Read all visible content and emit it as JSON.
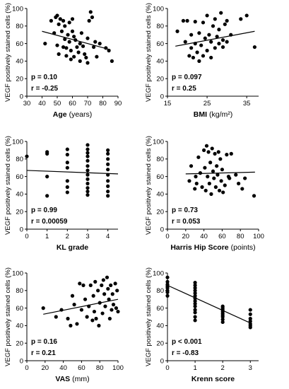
{
  "chart_data": [
    {
      "type": "scatter",
      "ylabel": "VEGF positively stained cells (%)",
      "xlabel": "Age",
      "xunit": "(years)",
      "xlim": [
        30,
        90
      ],
      "xticks": [
        30,
        40,
        50,
        60,
        70,
        80,
        90
      ],
      "ylim": [
        0,
        100
      ],
      "yticks": [
        0,
        20,
        40,
        60,
        80,
        100
      ],
      "stats": {
        "p": "p = 0.10",
        "r": "r = -0.25"
      },
      "trend": [
        [
          40,
          74
        ],
        [
          85,
          53
        ]
      ],
      "points": [
        [
          42,
          60
        ],
        [
          46,
          86
        ],
        [
          48,
          72
        ],
        [
          49,
          90
        ],
        [
          50,
          92
        ],
        [
          50,
          58
        ],
        [
          51,
          82
        ],
        [
          51,
          48
        ],
        [
          52,
          88
        ],
        [
          53,
          74
        ],
        [
          54,
          86
        ],
        [
          54,
          56
        ],
        [
          55,
          80
        ],
        [
          55,
          65
        ],
        [
          56,
          55
        ],
        [
          56,
          46
        ],
        [
          57,
          70
        ],
        [
          58,
          84
        ],
        [
          58,
          62
        ],
        [
          59,
          42
        ],
        [
          59,
          52
        ],
        [
          60,
          88
        ],
        [
          60,
          74
        ],
        [
          61,
          68
        ],
        [
          61,
          45
        ],
        [
          62,
          64
        ],
        [
          63,
          56
        ],
        [
          64,
          50
        ],
        [
          65,
          60
        ],
        [
          65,
          40
        ],
        [
          66,
          72
        ],
        [
          67,
          57
        ],
        [
          68,
          48
        ],
        [
          69,
          44
        ],
        [
          70,
          66
        ],
        [
          70,
          38
        ],
        [
          71,
          86
        ],
        [
          72,
          96
        ],
        [
          73,
          90
        ],
        [
          74,
          56
        ],
        [
          75,
          62
        ],
        [
          76,
          45
        ],
        [
          78,
          60
        ],
        [
          82,
          55
        ],
        [
          84,
          52
        ],
        [
          86,
          40
        ]
      ]
    },
    {
      "type": "scatter",
      "ylabel": "VEGF positively stained cells (%)",
      "xlabel": "BMI",
      "xunit": "(kg/m²)",
      "xlim": [
        15,
        38
      ],
      "xticks": [
        15,
        25,
        35
      ],
      "ylim": [
        0,
        100
      ],
      "yticks": [
        0,
        20,
        40,
        60,
        80,
        100
      ],
      "stats": {
        "p": "p = 0.097",
        "r": "r = 0.25"
      },
      "trend": [
        [
          17,
          57
        ],
        [
          37,
          74
        ]
      ],
      "points": [
        [
          17.5,
          74
        ],
        [
          19,
          86
        ],
        [
          19.5,
          62
        ],
        [
          20,
          86
        ],
        [
          20.5,
          46
        ],
        [
          21,
          70
        ],
        [
          21,
          55
        ],
        [
          21.5,
          44
        ],
        [
          22,
          85
        ],
        [
          22,
          60
        ],
        [
          22.5,
          50
        ],
        [
          23,
          72
        ],
        [
          23,
          40
        ],
        [
          23.5,
          58
        ],
        [
          24,
          84
        ],
        [
          24,
          46
        ],
        [
          24.5,
          66
        ],
        [
          25,
          52
        ],
        [
          25,
          92
        ],
        [
          25.5,
          70
        ],
        [
          26,
          44
        ],
        [
          26,
          62
        ],
        [
          26.5,
          80
        ],
        [
          27,
          55
        ],
        [
          27,
          88
        ],
        [
          27.5,
          68
        ],
        [
          28,
          60
        ],
        [
          28,
          76
        ],
        [
          28.5,
          95
        ],
        [
          29,
          56
        ],
        [
          29,
          64
        ],
        [
          29.5,
          82
        ],
        [
          30,
          62
        ],
        [
          30,
          86
        ],
        [
          31,
          70
        ],
        [
          33.5,
          88
        ],
        [
          35,
          92
        ],
        [
          37,
          56
        ]
      ]
    },
    {
      "type": "scatter",
      "ylabel": "VEGF positively stained cells (%)",
      "xlabel": "KL grade",
      "xunit": "",
      "xlim": [
        0,
        4.5
      ],
      "xticks": [
        0,
        1,
        2,
        3,
        4
      ],
      "ylim": [
        0,
        100
      ],
      "yticks": [
        0,
        20,
        40,
        60,
        80,
        100
      ],
      "stats": {
        "p": "p = 0.99",
        "r": "r = 0.00059"
      },
      "trend": [
        [
          0,
          67
        ],
        [
          4.5,
          63
        ]
      ],
      "points": [
        [
          0,
          83
        ],
        [
          1,
          88
        ],
        [
          1,
          86
        ],
        [
          1,
          60
        ],
        [
          1,
          38
        ],
        [
          2,
          91
        ],
        [
          2,
          85
        ],
        [
          2,
          76
        ],
        [
          2,
          70
        ],
        [
          2,
          55
        ],
        [
          2,
          48
        ],
        [
          2,
          42
        ],
        [
          3,
          96
        ],
        [
          3,
          91
        ],
        [
          3,
          87
        ],
        [
          3,
          83
        ],
        [
          3,
          78
        ],
        [
          3,
          72
        ],
        [
          3,
          67
        ],
        [
          3,
          62
        ],
        [
          3,
          57
        ],
        [
          3,
          52
        ],
        [
          3,
          47
        ],
        [
          3,
          43
        ],
        [
          3,
          39
        ],
        [
          4,
          90
        ],
        [
          4,
          86
        ],
        [
          4,
          80
        ],
        [
          4,
          74
        ],
        [
          4,
          68
        ],
        [
          4,
          62
        ],
        [
          4,
          55
        ],
        [
          4,
          49
        ],
        [
          4,
          43
        ],
        [
          4,
          38
        ]
      ]
    },
    {
      "type": "scatter",
      "ylabel": "VEGF positively stained cells (%)",
      "xlabel": "Harris Hip Score",
      "xunit": "(points)",
      "xlim": [
        0,
        100
      ],
      "xticks": [
        0,
        20,
        40,
        60,
        80,
        100
      ],
      "ylim": [
        0,
        100
      ],
      "yticks": [
        0,
        20,
        40,
        60,
        80,
        100
      ],
      "stats": {
        "p": "p = 0.73",
        "r": "r = 0.053"
      },
      "trend": [
        [
          20,
          63
        ],
        [
          96,
          65
        ]
      ],
      "points": [
        [
          24,
          55
        ],
        [
          26,
          72
        ],
        [
          30,
          46
        ],
        [
          31,
          60
        ],
        [
          32,
          52
        ],
        [
          34,
          82
        ],
        [
          36,
          64
        ],
        [
          38,
          48
        ],
        [
          40,
          90
        ],
        [
          41,
          70
        ],
        [
          42,
          44
        ],
        [
          43,
          95
        ],
        [
          44,
          60
        ],
        [
          45,
          88
        ],
        [
          46,
          52
        ],
        [
          47,
          76
        ],
        [
          48,
          40
        ],
        [
          49,
          92
        ],
        [
          50,
          66
        ],
        [
          51,
          58
        ],
        [
          52,
          86
        ],
        [
          53,
          48
        ],
        [
          54,
          72
        ],
        [
          55,
          62
        ],
        [
          56,
          88
        ],
        [
          57,
          44
        ],
        [
          58,
          80
        ],
        [
          59,
          55
        ],
        [
          60,
          68
        ],
        [
          61,
          42
        ],
        [
          63,
          50
        ],
        [
          65,
          85
        ],
        [
          67,
          60
        ],
        [
          68,
          58
        ],
        [
          70,
          86
        ],
        [
          75,
          62
        ],
        [
          78,
          52
        ],
        [
          82,
          46
        ],
        [
          85,
          58
        ],
        [
          95,
          38
        ]
      ]
    },
    {
      "type": "scatter",
      "ylabel": "VEGF positively stained cells (%)",
      "xlabel": "VAS",
      "xunit": "(mm)",
      "xlim": [
        0,
        100
      ],
      "xticks": [
        0,
        20,
        40,
        60,
        80,
        100
      ],
      "ylim": [
        0,
        100
      ],
      "yticks": [
        0,
        20,
        40,
        60,
        80,
        100
      ],
      "stats": {
        "p": "p = 0.16",
        "r": "r = 0.21"
      },
      "trend": [
        [
          18,
          53
        ],
        [
          100,
          70
        ]
      ],
      "points": [
        [
          18,
          60
        ],
        [
          32,
          50
        ],
        [
          38,
          58
        ],
        [
          45,
          48
        ],
        [
          48,
          40
        ],
        [
          50,
          74
        ],
        [
          52,
          64
        ],
        [
          55,
          42
        ],
        [
          58,
          88
        ],
        [
          60,
          58
        ],
        [
          62,
          86
        ],
        [
          64,
          70
        ],
        [
          66,
          50
        ],
        [
          68,
          62
        ],
        [
          70,
          86
        ],
        [
          72,
          46
        ],
        [
          73,
          74
        ],
        [
          74,
          56
        ],
        [
          75,
          90
        ],
        [
          76,
          48
        ],
        [
          78,
          80
        ],
        [
          79,
          40
        ],
        [
          80,
          66
        ],
        [
          82,
          86
        ],
        [
          83,
          54
        ],
        [
          84,
          92
        ],
        [
          85,
          76
        ],
        [
          86,
          62
        ],
        [
          88,
          95
        ],
        [
          89,
          82
        ],
        [
          90,
          70
        ],
        [
          91,
          48
        ],
        [
          92,
          86
        ],
        [
          93,
          58
        ],
        [
          94,
          76
        ],
        [
          95,
          64
        ],
        [
          97,
          88
        ],
        [
          98,
          60
        ],
        [
          99,
          80
        ],
        [
          100,
          56
        ]
      ]
    },
    {
      "type": "scatter",
      "ylabel": "VEGF positively stained cells (%)",
      "xlabel": "Krenn score",
      "xunit": "",
      "xlim": [
        0,
        3.3
      ],
      "xticks": [
        0,
        1,
        2,
        3
      ],
      "ylim": [
        0,
        100
      ],
      "yticks": [
        0,
        20,
        40,
        60,
        80,
        100
      ],
      "stats": {
        "p": "p < 0.001",
        "r": "r = -0.83"
      },
      "trend": [
        [
          0,
          86
        ],
        [
          3,
          43
        ]
      ],
      "points": [
        [
          0,
          95
        ],
        [
          0,
          90
        ],
        [
          0,
          87
        ],
        [
          0,
          85
        ],
        [
          0,
          83
        ],
        [
          0,
          80
        ],
        [
          0,
          78
        ],
        [
          0,
          74
        ],
        [
          1,
          89
        ],
        [
          1,
          86
        ],
        [
          1,
          83
        ],
        [
          1,
          80
        ],
        [
          1,
          77
        ],
        [
          1,
          74
        ],
        [
          1,
          71
        ],
        [
          1,
          68
        ],
        [
          1,
          65
        ],
        [
          1,
          62
        ],
        [
          1,
          58
        ],
        [
          1,
          55
        ],
        [
          1,
          50
        ],
        [
          1,
          46
        ],
        [
          2,
          62
        ],
        [
          2,
          60
        ],
        [
          2,
          58
        ],
        [
          2,
          56
        ],
        [
          2,
          54
        ],
        [
          2,
          52
        ],
        [
          2,
          50
        ],
        [
          2,
          47
        ],
        [
          2,
          44
        ],
        [
          3,
          58
        ],
        [
          3,
          53
        ],
        [
          3,
          48
        ],
        [
          3,
          45
        ],
        [
          3,
          42
        ],
        [
          3,
          40
        ],
        [
          3,
          38
        ]
      ]
    }
  ]
}
